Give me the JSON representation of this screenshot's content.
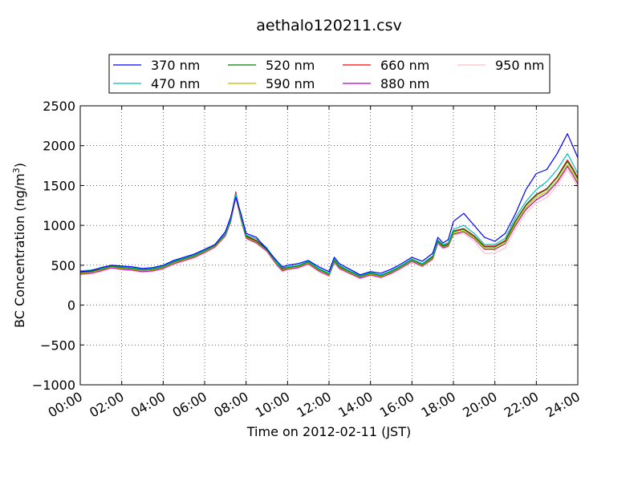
{
  "chart_data": {
    "type": "line",
    "title": "aethalo120211.csv",
    "xlabel": "Time on 2012-02-11 (JST)",
    "ylabel_main": "BC Concentration (ng/m",
    "ylabel_sup": "3",
    "ylabel_close": ")",
    "xlim": [
      0,
      24
    ],
    "ylim": [
      -1000,
      2500
    ],
    "grid": true,
    "legend_position": "top-center, outside plot, 4 columns",
    "x_tick_values": [
      0,
      2,
      4,
      6,
      8,
      10,
      12,
      14,
      16,
      18,
      20,
      22,
      24
    ],
    "x_tick_labels": [
      "00:00",
      "02:00",
      "04:00",
      "06:00",
      "08:00",
      "10:00",
      "12:00",
      "14:00",
      "16:00",
      "18:00",
      "20:00",
      "22:00",
      "24:00"
    ],
    "y_tick_values": [
      -1000,
      -500,
      0,
      500,
      1000,
      1500,
      2000,
      2500
    ],
    "y_tick_labels": [
      "−1000",
      "−500",
      "0",
      "500",
      "1000",
      "1500",
      "2000",
      "2500"
    ],
    "x": [
      0.0,
      0.5,
      1.0,
      1.5,
      2.0,
      2.5,
      3.0,
      3.5,
      4.0,
      4.5,
      5.0,
      5.5,
      6.0,
      6.5,
      7.0,
      7.25,
      7.5,
      7.75,
      8.0,
      8.5,
      9.0,
      9.5,
      9.75,
      10.0,
      10.5,
      11.0,
      11.5,
      12.0,
      12.25,
      12.5,
      13.0,
      13.5,
      14.0,
      14.5,
      15.0,
      15.5,
      16.0,
      16.5,
      17.0,
      17.25,
      17.5,
      17.75,
      18.0,
      18.5,
      19.0,
      19.5,
      20.0,
      20.5,
      21.0,
      21.5,
      22.0,
      22.5,
      23.0,
      23.5,
      23.75,
      24.0
    ],
    "series": [
      {
        "name": "370 nm",
        "color": "#0000ff",
        "values": [
          420,
          430,
          470,
          500,
          490,
          480,
          460,
          470,
          500,
          560,
          600,
          640,
          700,
          760,
          920,
          1100,
          1350,
          1150,
          900,
          850,
          700,
          550,
          480,
          500,
          520,
          560,
          480,
          420,
          600,
          520,
          450,
          380,
          420,
          400,
          450,
          520,
          600,
          550,
          650,
          850,
          780,
          820,
          1050,
          1150,
          1000,
          850,
          800,
          900,
          1150,
          1450,
          1650,
          1700,
          1900,
          2150,
          2000,
          1850
        ]
      },
      {
        "name": "470 nm",
        "color": "#00bfbf",
        "values": [
          430,
          440,
          460,
          500,
          480,
          470,
          450,
          460,
          490,
          550,
          590,
          630,
          690,
          760,
          900,
          1080,
          1400,
          1120,
          880,
          830,
          720,
          530,
          470,
          480,
          500,
          550,
          460,
          400,
          580,
          500,
          430,
          370,
          410,
          380,
          430,
          500,
          580,
          520,
          620,
          820,
          760,
          780,
          950,
          1000,
          900,
          760,
          760,
          840,
          1100,
          1300,
          1450,
          1550,
          1700,
          1900,
          1780,
          1650
        ]
      },
      {
        "name": "520 nm",
        "color": "#008000",
        "values": [
          410,
          420,
          450,
          490,
          470,
          460,
          440,
          450,
          480,
          540,
          580,
          620,
          680,
          750,
          890,
          1060,
          1380,
          1100,
          860,
          800,
          700,
          520,
          450,
          470,
          490,
          540,
          450,
          390,
          560,
          480,
          420,
          360,
          400,
          370,
          420,
          490,
          570,
          510,
          600,
          800,
          740,
          760,
          920,
          950,
          860,
          730,
          730,
          800,
          1050,
          1250,
          1380,
          1450,
          1600,
          1800,
          1700,
          1580
        ]
      },
      {
        "name": "590 nm",
        "color": "#bfbf00",
        "values": [
          400,
          410,
          440,
          480,
          460,
          450,
          430,
          440,
          470,
          530,
          570,
          610,
          670,
          740,
          880,
          1050,
          1370,
          1090,
          850,
          790,
          690,
          510,
          440,
          460,
          480,
          530,
          440,
          380,
          550,
          470,
          410,
          350,
          390,
          360,
          410,
          480,
          560,
          500,
          590,
          790,
          730,
          750,
          900,
          930,
          840,
          710,
          710,
          780,
          1020,
          1220,
          1350,
          1420,
          1560,
          1760,
          1660,
          1540
        ]
      },
      {
        "name": "660 nm",
        "color": "#ff0000",
        "values": [
          410,
          425,
          455,
          495,
          475,
          465,
          445,
          455,
          485,
          545,
          585,
          625,
          685,
          755,
          895,
          1070,
          1420,
          1110,
          870,
          810,
          710,
          525,
          455,
          475,
          495,
          545,
          455,
          395,
          565,
          485,
          425,
          365,
          405,
          375,
          425,
          495,
          575,
          515,
          605,
          805,
          745,
          765,
          930,
          960,
          870,
          740,
          740,
          810,
          1060,
          1260,
          1390,
          1460,
          1610,
          1820,
          1720,
          1600
        ]
      },
      {
        "name": "880 nm",
        "color": "#bf00bf",
        "values": [
          390,
          400,
          430,
          470,
          450,
          440,
          420,
          430,
          460,
          520,
          560,
          600,
          660,
          730,
          870,
          1040,
          1360,
          1080,
          840,
          780,
          680,
          500,
          430,
          450,
          470,
          520,
          430,
          370,
          540,
          460,
          400,
          340,
          380,
          350,
          400,
          470,
          550,
          490,
          580,
          780,
          720,
          740,
          890,
          920,
          830,
          700,
          700,
          770,
          1000,
          1200,
          1320,
          1400,
          1540,
          1740,
          1640,
          1520
        ]
      },
      {
        "name": "950 nm",
        "color": "#ffc0cb",
        "values": [
          380,
          390,
          420,
          460,
          440,
          430,
          410,
          420,
          450,
          510,
          550,
          590,
          650,
          720,
          860,
          1030,
          1350,
          1070,
          830,
          770,
          670,
          490,
          420,
          440,
          460,
          510,
          420,
          360,
          530,
          450,
          390,
          330,
          370,
          340,
          390,
          460,
          540,
          480,
          570,
          770,
          710,
          730,
          880,
          900,
          800,
          650,
          650,
          720,
          960,
          1150,
          1280,
          1350,
          1500,
          1700,
          1600,
          1480
        ]
      }
    ]
  }
}
